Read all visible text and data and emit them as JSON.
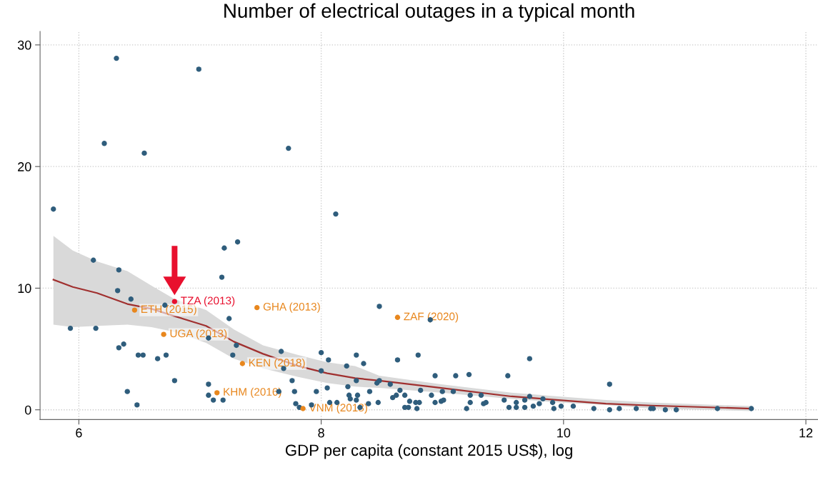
{
  "chart_data": {
    "type": "scatter",
    "title": "Number of electrical outages in a typical month",
    "xlabel": "GDP per capita (constant 2015 US$), log",
    "xlim": [
      5.68,
      12.1
    ],
    "ylim": [
      -0.8,
      31.1
    ],
    "xticks": [
      6,
      8,
      10,
      12
    ],
    "yticks": [
      0,
      10,
      20,
      30
    ],
    "grid": true,
    "marker": "circle",
    "legend": false,
    "series": [
      {
        "type": "line",
        "color": "#a0302f",
        "line_style": "solid",
        "marker": "none",
        "x": [
          5.79,
          5.95,
          6.15,
          6.4,
          6.6,
          6.79,
          7.05,
          7.28,
          7.52,
          7.81,
          8.05,
          8.28,
          8.48,
          8.99,
          9.57,
          9.96,
          10.35,
          10.72,
          11.55
        ],
        "values": [
          10.7,
          10.1,
          9.6,
          8.7,
          8.3,
          7.7,
          6.9,
          5.6,
          4.6,
          3.6,
          3.0,
          2.6,
          2.4,
          1.8,
          1.1,
          0.8,
          0.5,
          0.35,
          0.1
        ],
        "upper": [
          14.3,
          13.1,
          12.2,
          11.4,
          10.2,
          9.1,
          8.2,
          6.6,
          5.3,
          4.5,
          3.9,
          3.6,
          2.8,
          2.1,
          1.4,
          1.1,
          0.8,
          0.6,
          0.3
        ],
        "lower": [
          7.0,
          6.8,
          6.9,
          7.0,
          6.8,
          6.4,
          5.5,
          4.2,
          3.4,
          2.7,
          2.2,
          1.9,
          1.8,
          1.4,
          0.9,
          0.6,
          0.4,
          0.1,
          -0.1
        ]
      },
      {
        "color": "#2f5d7c",
        "x": [
          5.79,
          6.31,
          6.99,
          6.21,
          6.54,
          7.73,
          8.12,
          6.12,
          6.33,
          7.2,
          7.31,
          7.18,
          6.32,
          6.43,
          6.71,
          5.93,
          6.14,
          7.07,
          7.24,
          6.33,
          6.37,
          6.49,
          6.53,
          6.65,
          6.72,
          7.3,
          7.27,
          7.67,
          7.69,
          8.0,
          8.06,
          8.21,
          8.29,
          8.0,
          6.4,
          6.48,
          6.79,
          7.07,
          7.07,
          7.11,
          7.19,
          7.65,
          7.76,
          7.78,
          7.79,
          7.82,
          7.92,
          7.96,
          8.05,
          8.07,
          8.13,
          8.22,
          8.23,
          8.24,
          8.29,
          8.48,
          8.9,
          8.35,
          8.63,
          8.8,
          8.48,
          8.46,
          8.57,
          8.65,
          8.62,
          8.59,
          8.69,
          8.73,
          8.69,
          8.72,
          8.78,
          8.81,
          8.79,
          8.82,
          8.94,
          8.91,
          8.94,
          8.99,
          9.01,
          9.0,
          9.09,
          9.11,
          9.22,
          9.23,
          9.23,
          9.2,
          9.32,
          9.34,
          9.36,
          9.54,
          9.51,
          9.55,
          9.61,
          9.61,
          9.68,
          9.68,
          9.72,
          9.72,
          9.75,
          9.8,
          9.83,
          9.91,
          9.92,
          9.98,
          10.08,
          10.25,
          8.29,
          8.32,
          8.39,
          8.47,
          8.4,
          8.3,
          10.38,
          10.38,
          10.46,
          10.6,
          10.72,
          10.74,
          10.84,
          10.93,
          11.27,
          11.55
        ],
        "values": [
          16.5,
          28.9,
          28.0,
          21.9,
          21.1,
          21.5,
          16.1,
          12.3,
          11.5,
          13.3,
          13.8,
          10.9,
          9.8,
          9.1,
          8.6,
          6.7,
          6.7,
          5.9,
          7.5,
          5.1,
          5.4,
          4.5,
          4.5,
          4.2,
          4.5,
          5.3,
          4.5,
          4.8,
          3.4,
          4.7,
          4.1,
          3.6,
          4.5,
          3.2,
          1.5,
          0.4,
          2.4,
          2.1,
          1.2,
          0.8,
          0.8,
          1.5,
          2.4,
          1.5,
          0.5,
          0.2,
          0.4,
          1.5,
          1.8,
          0.6,
          0.6,
          1.9,
          1.2,
          0.9,
          2.4,
          8.5,
          7.4,
          3.8,
          4.1,
          4.5,
          2.4,
          2.2,
          2.1,
          1.6,
          1.2,
          1.0,
          1.2,
          0.7,
          0.2,
          0.2,
          0.6,
          0.6,
          0.1,
          1.6,
          2.8,
          1.2,
          0.6,
          0.7,
          0.8,
          1.5,
          1.5,
          2.8,
          2.9,
          1.2,
          0.6,
          0.1,
          1.2,
          0.5,
          0.6,
          2.8,
          0.8,
          0.2,
          0.6,
          0.2,
          0.8,
          0.2,
          4.2,
          1.1,
          0.3,
          0.5,
          0.9,
          0.6,
          0.1,
          0.3,
          0.3,
          0.1,
          0.8,
          0.2,
          0.5,
          0.6,
          1.5,
          1.2,
          2.1,
          0.0,
          0.1,
          0.1,
          0.1,
          0.1,
          0.0,
          0.0,
          0.1,
          0.1
        ]
      },
      {
        "color": "#e8871e",
        "x": [
          6.46,
          7.47,
          6.7,
          8.63,
          7.35,
          7.14,
          7.85
        ],
        "values": [
          8.2,
          8.4,
          6.2,
          7.6,
          3.8,
          1.4,
          0.1
        ]
      },
      {
        "color": "#e8102e",
        "x": [
          6.79
        ],
        "values": [
          8.9
        ]
      }
    ],
    "annotations": [
      {
        "text": "ETH (2015)",
        "x": 6.46,
        "y": 8.2
      },
      {
        "text": "GHA (2013)",
        "x": 7.47,
        "y": 8.4
      },
      {
        "text": "UGA (2013)",
        "x": 6.7,
        "y": 6.2
      },
      {
        "text": "ZAF (2020)",
        "x": 8.63,
        "y": 7.6
      },
      {
        "text": "KEN (2018)",
        "x": 7.35,
        "y": 3.8
      },
      {
        "text": "KHM (2016)",
        "x": 7.14,
        "y": 1.4
      },
      {
        "text": "VNM (2018)",
        "x": 7.85,
        "y": 0.1
      },
      {
        "text": "TZA (2013)",
        "x": 6.79,
        "y": 8.9
      }
    ]
  }
}
